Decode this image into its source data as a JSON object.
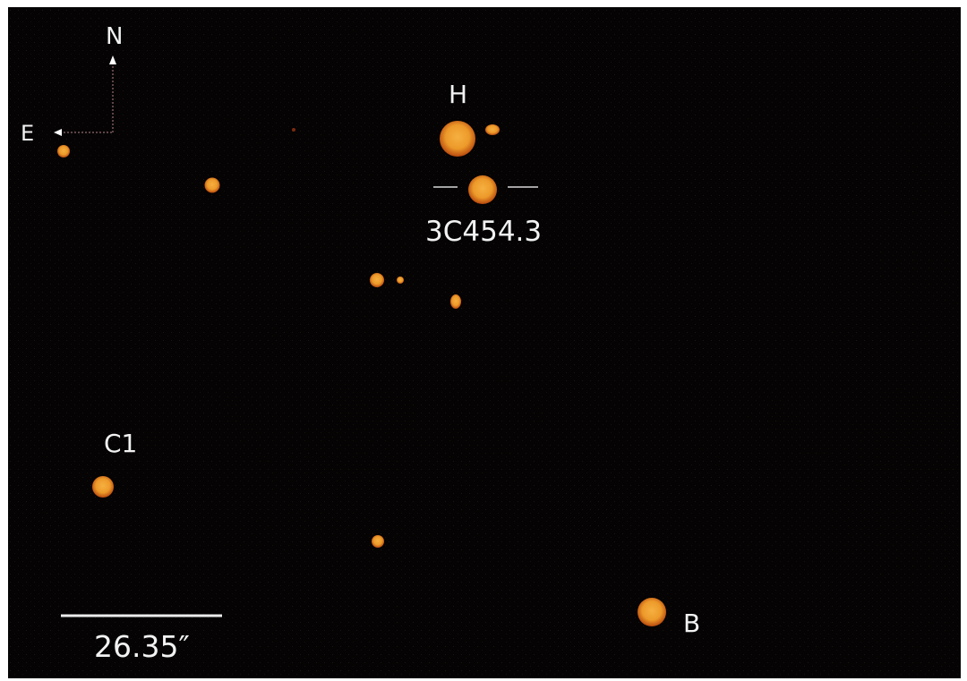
{
  "compass": {
    "north_label": "N",
    "east_label": "E"
  },
  "labels": {
    "star_h": "H",
    "target": "3C454.3",
    "star_c1": "C1",
    "star_b": "B"
  },
  "scale_bar": {
    "label": "26.35″"
  },
  "colors": {
    "background": "#050303",
    "star_core": "#f0a030",
    "star_edge": "#c05010",
    "text": "#f2f2f2"
  }
}
